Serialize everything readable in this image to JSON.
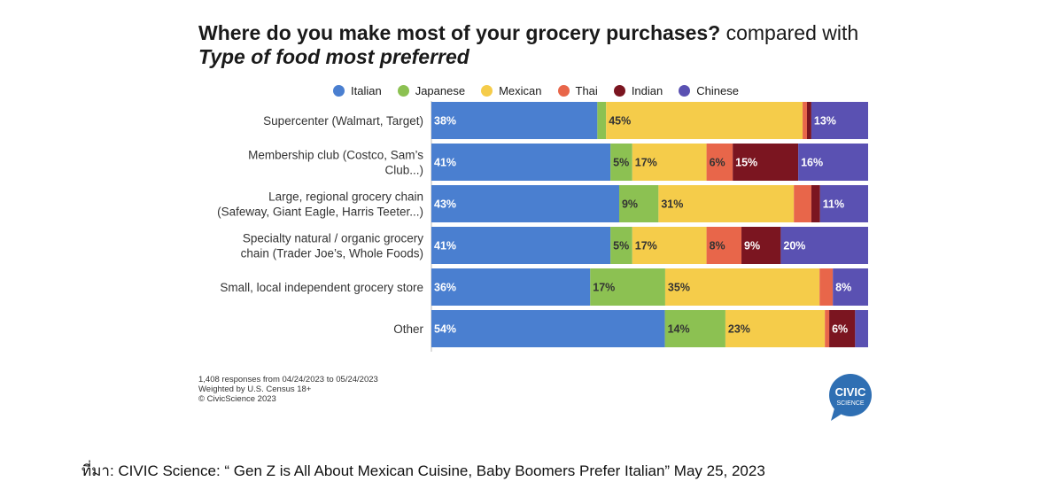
{
  "title": {
    "question": "Where do you make most of your grocery purchases?",
    "compare": "compared with",
    "subtitle": "Type of food most preferred"
  },
  "legend": [
    {
      "name": "Italian",
      "color": "#4a7fd0"
    },
    {
      "name": "Japanese",
      "color": "#8cc152"
    },
    {
      "name": "Mexican",
      "color": "#f5cc4a"
    },
    {
      "name": "Thai",
      "color": "#e8664a"
    },
    {
      "name": "Indian",
      "color": "#7b1520"
    },
    {
      "name": "Chinese",
      "color": "#5a51b2"
    }
  ],
  "notes": [
    "1,408 responses from 04/24/2023 to 05/24/2023",
    "Weighted by U.S. Census 18+",
    "© CivicScience 2023"
  ],
  "logo": {
    "line1": "CIVIC",
    "line2": "SCIENCE"
  },
  "source": "ที่มา: CIVIC Science: “ Gen Z is All About Mexican Cuisine, Baby Boomers Prefer Italian” May 25, 2023",
  "chart_data": {
    "type": "bar",
    "orientation": "horizontal-stacked-100",
    "categories": [
      [
        "Supercenter (Walmart, Target)"
      ],
      [
        "Membership club (Costco, Sam’s",
        "Club...)"
      ],
      [
        "Large, regional grocery chain",
        "(Safeway, Giant Eagle, Harris Teeter...)"
      ],
      [
        "Specialty natural / organic grocery",
        "chain (Trader Joe’s, Whole Foods)"
      ],
      [
        "Small, local independent grocery store"
      ],
      [
        "Other"
      ]
    ],
    "series": [
      {
        "name": "Italian",
        "values": [
          38,
          41,
          43,
          41,
          36,
          54
        ]
      },
      {
        "name": "Japanese",
        "values": [
          2,
          5,
          9,
          5,
          17,
          14
        ]
      },
      {
        "name": "Mexican",
        "values": [
          45,
          17,
          31,
          17,
          35,
          23
        ]
      },
      {
        "name": "Thai",
        "values": [
          1,
          6,
          4,
          8,
          3,
          1
        ]
      },
      {
        "name": "Indian",
        "values": [
          1,
          15,
          2,
          9,
          0,
          6
        ]
      },
      {
        "name": "Chinese",
        "values": [
          13,
          16,
          11,
          20,
          8,
          3
        ]
      }
    ],
    "labels": [
      [
        "38%",
        "",
        "45%",
        "",
        "",
        "13%"
      ],
      [
        "41%",
        "5%",
        "17%",
        "6%",
        "15%",
        "16%"
      ],
      [
        "43%",
        "9%",
        "31%",
        "",
        "",
        "11%"
      ],
      [
        "41%",
        "5%",
        "17%",
        "8%",
        "9%",
        "20%"
      ],
      [
        "36%",
        "17%",
        "35%",
        "",
        "",
        "8%"
      ],
      [
        "54%",
        "14%",
        "23%",
        "",
        "6%",
        ""
      ]
    ],
    "xlim": [
      0,
      100
    ],
    "legend_position": "top",
    "grid": false
  }
}
